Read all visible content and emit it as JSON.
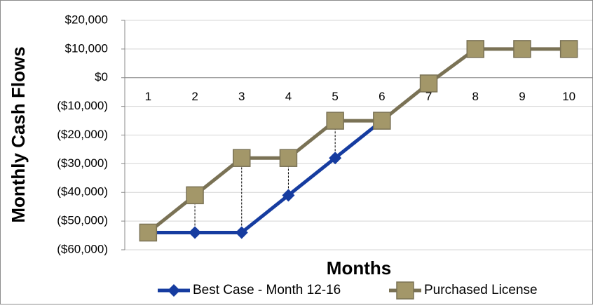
{
  "chart_data": {
    "type": "line",
    "x_label": "Months",
    "y_label": "Monthly Cash Flows",
    "categories": [
      "1",
      "2",
      "3",
      "4",
      "5",
      "6",
      "7",
      "8",
      "9",
      "10"
    ],
    "series": [
      {
        "name": "Best Case - Month 12-16",
        "color": "#163ca0",
        "marker": "diamond",
        "values": [
          -54000,
          -54000,
          -54000,
          -41000,
          -28000,
          -15000,
          null,
          null,
          null,
          null
        ]
      },
      {
        "name": "Purchased License",
        "color": "#7a7255",
        "marker": "square",
        "values": [
          -54000,
          -41000,
          -28000,
          -28000,
          -15000,
          -15000,
          -2000,
          10000,
          10000,
          10000
        ]
      }
    ],
    "ylim": [
      -60000,
      20000
    ],
    "yticks": [
      {
        "value": 20000,
        "label": "$20,000"
      },
      {
        "value": 10000,
        "label": "$10,000"
      },
      {
        "value": 0,
        "label": "$0"
      },
      {
        "value": -10000,
        "label": "($10,000)"
      },
      {
        "value": -20000,
        "label": "($20,000)"
      },
      {
        "value": -30000,
        "label": "($30,000)"
      },
      {
        "value": -40000,
        "label": "($40,000)"
      },
      {
        "value": -50000,
        "label": "($50,000)"
      },
      {
        "value": -60000,
        "label": "($60,000)"
      }
    ],
    "grid": true,
    "legend": "bottom"
  }
}
